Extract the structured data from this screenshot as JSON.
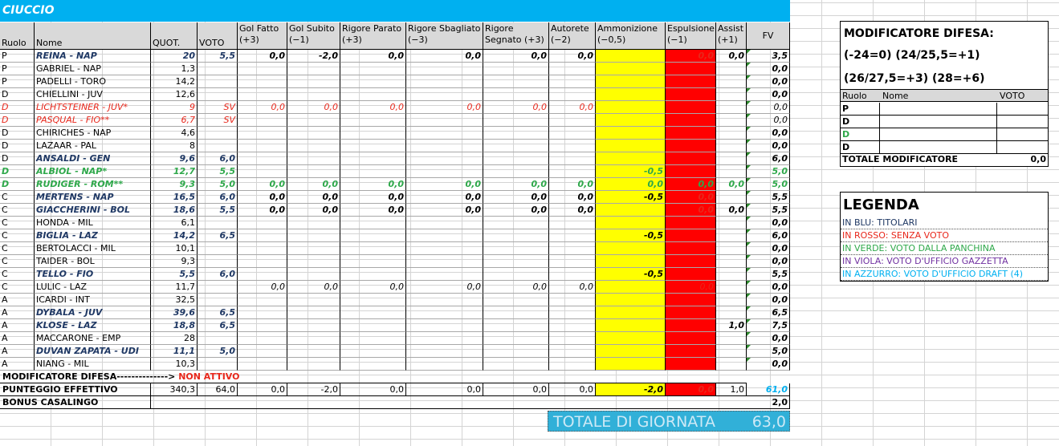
{
  "team_name": "CIUCCIO",
  "columns": [
    "Ruolo",
    "Nome",
    "QUOT.",
    "VOTO",
    "Gol Fatto (+3)",
    "Gol Subito (−1)",
    "Rigore Parato (+3)",
    "Rigore Sbagliato (−3)",
    "Rigore Segnato (+3)",
    "Autorete (−2)",
    "Ammonizione (−0,5)",
    "Espulsione (−1)",
    "Assist (+1)",
    "FV"
  ],
  "players": [
    {
      "ruolo": "P",
      "nome": "REINA - NAP",
      "quot": "20",
      "voto": "5,5",
      "gf": "0,0",
      "gs": "-2,0",
      "rp": "0,0",
      "rsb": "0,0",
      "rse": "0,0",
      "aut": "0,0",
      "amm": "",
      "esp": "0,0",
      "ass": "0,0",
      "fv": "3,5",
      "style": "blue"
    },
    {
      "ruolo": "P",
      "nome": "GABRIEL - NAP",
      "quot": "1,3",
      "voto": "",
      "gf": "",
      "gs": "",
      "rp": "",
      "rsb": "",
      "rse": "",
      "aut": "",
      "amm": "",
      "esp": "",
      "ass": "",
      "fv": "0,0",
      "style": "plain"
    },
    {
      "ruolo": "P",
      "nome": "PADELLI - TORO",
      "quot": "14,2",
      "voto": "",
      "gf": "",
      "gs": "",
      "rp": "",
      "rsb": "",
      "rse": "",
      "aut": "",
      "amm": "",
      "esp": "",
      "ass": "",
      "fv": "0,0",
      "style": "plain"
    },
    {
      "ruolo": "D",
      "nome": "CHIELLINI - JUV",
      "quot": "12,6",
      "voto": "",
      "gf": "",
      "gs": "",
      "rp": "",
      "rsb": "",
      "rse": "",
      "aut": "",
      "amm": "",
      "esp": "",
      "ass": "",
      "fv": "0,0",
      "style": "plain"
    },
    {
      "ruolo": "D",
      "nome": "LICHTSTEINER - JUV*",
      "quot": "9",
      "voto": "SV",
      "gf": "0,0",
      "gs": "0,0",
      "rp": "0,0",
      "rsb": "0,0",
      "rse": "0,0",
      "aut": "0,0",
      "amm": "",
      "esp": "",
      "ass": "",
      "fv": "0,0",
      "style": "red"
    },
    {
      "ruolo": "D",
      "nome": "PASQUAL - FIO**",
      "quot": "6,7",
      "voto": "SV",
      "gf": "",
      "gs": "",
      "rp": "",
      "rsb": "",
      "rse": "",
      "aut": "",
      "amm": "",
      "esp": "",
      "ass": "",
      "fv": "0,0",
      "style": "red"
    },
    {
      "ruolo": "D",
      "nome": "CHIRICHES - NAP",
      "quot": "4,6",
      "voto": "",
      "gf": "",
      "gs": "",
      "rp": "",
      "rsb": "",
      "rse": "",
      "aut": "",
      "amm": "",
      "esp": "",
      "ass": "",
      "fv": "0,0",
      "style": "plain"
    },
    {
      "ruolo": "D",
      "nome": "LAZAAR - PAL",
      "quot": "8",
      "voto": "",
      "gf": "",
      "gs": "",
      "rp": "",
      "rsb": "",
      "rse": "",
      "aut": "",
      "amm": "",
      "esp": "",
      "ass": "",
      "fv": "0,0",
      "style": "plain"
    },
    {
      "ruolo": "D",
      "nome": "ANSALDI - GEN",
      "quot": "9,6",
      "voto": "6,0",
      "gf": "",
      "gs": "",
      "rp": "",
      "rsb": "",
      "rse": "",
      "aut": "",
      "amm": "",
      "esp": "",
      "ass": "",
      "fv": "6,0",
      "style": "blue"
    },
    {
      "ruolo": "D",
      "nome": "ALBIOL - NAP*",
      "quot": "12,7",
      "voto": "5,5",
      "gf": "",
      "gs": "",
      "rp": "",
      "rsb": "",
      "rse": "",
      "aut": "",
      "amm": "-0,5",
      "esp": "",
      "ass": "",
      "fv": "5,0",
      "style": "green"
    },
    {
      "ruolo": "D",
      "nome": "RUDIGER - ROM**",
      "quot": "9,3",
      "voto": "5,0",
      "gf": "0,0",
      "gs": "0,0",
      "rp": "0,0",
      "rsb": "0,0",
      "rse": "0,0",
      "aut": "0,0",
      "amm": "0,0",
      "esp": "0,0",
      "ass": "0,0",
      "fv": "5,0",
      "style": "green"
    },
    {
      "ruolo": "C",
      "nome": "MERTENS - NAP",
      "quot": "16,5",
      "voto": "6,0",
      "gf": "0,0",
      "gs": "0,0",
      "rp": "0,0",
      "rsb": "0,0",
      "rse": "0,0",
      "aut": "0,0",
      "amm": "-0,5",
      "esp": "0,0",
      "ass": "",
      "fv": "5,5",
      "style": "blue"
    },
    {
      "ruolo": "C",
      "nome": "GIACCHERINI - BOL",
      "quot": "18,6",
      "voto": "5,5",
      "gf": "0,0",
      "gs": "0,0",
      "rp": "0,0",
      "rsb": "0,0",
      "rse": "0,0",
      "aut": "0,0",
      "amm": "",
      "esp": "0,0",
      "ass": "0,0",
      "fv": "5,5",
      "style": "blue"
    },
    {
      "ruolo": "C",
      "nome": "HONDA - MIL",
      "quot": "6,1",
      "voto": "",
      "gf": "",
      "gs": "",
      "rp": "",
      "rsb": "",
      "rse": "",
      "aut": "",
      "amm": "",
      "esp": "",
      "ass": "",
      "fv": "0,0",
      "style": "plain"
    },
    {
      "ruolo": "C",
      "nome": "BIGLIA - LAZ",
      "quot": "14,2",
      "voto": "6,5",
      "gf": "",
      "gs": "",
      "rp": "",
      "rsb": "",
      "rse": "",
      "aut": "",
      "amm": "-0,5",
      "esp": "",
      "ass": "",
      "fv": "6,0",
      "style": "blue"
    },
    {
      "ruolo": "C",
      "nome": "BERTOLACCI - MIL",
      "quot": "10,1",
      "voto": "",
      "gf": "",
      "gs": "",
      "rp": "",
      "rsb": "",
      "rse": "",
      "aut": "",
      "amm": "",
      "esp": "",
      "ass": "",
      "fv": "0,0",
      "style": "plain"
    },
    {
      "ruolo": "C",
      "nome": "TAIDER - BOL",
      "quot": "9,3",
      "voto": "",
      "gf": "",
      "gs": "",
      "rp": "",
      "rsb": "",
      "rse": "",
      "aut": "",
      "amm": "",
      "esp": "",
      "ass": "",
      "fv": "0,0",
      "style": "plain"
    },
    {
      "ruolo": "C",
      "nome": "TELLO - FIO",
      "quot": "5,5",
      "voto": "6,0",
      "gf": "",
      "gs": "",
      "rp": "",
      "rsb": "",
      "rse": "",
      "aut": "",
      "amm": "-0,5",
      "esp": "",
      "ass": "",
      "fv": "5,5",
      "style": "blue"
    },
    {
      "ruolo": "C",
      "nome": "LULIC - LAZ",
      "quot": "11,7",
      "voto": "",
      "gf": "0,0",
      "gs": "0,0",
      "rp": "0,0",
      "rsb": "0,0",
      "rse": "0,0",
      "aut": "0,0",
      "amm": "",
      "esp": "0,0",
      "ass": "",
      "fv": "0,0",
      "style": "plain"
    },
    {
      "ruolo": "A",
      "nome": "ICARDI - INT",
      "quot": "32,5",
      "voto": "",
      "gf": "",
      "gs": "",
      "rp": "",
      "rsb": "",
      "rse": "",
      "aut": "",
      "amm": "",
      "esp": "",
      "ass": "",
      "fv": "0,0",
      "style": "plain"
    },
    {
      "ruolo": "A",
      "nome": "DYBALA - JUV",
      "quot": "39,6",
      "voto": "6,5",
      "gf": "",
      "gs": "",
      "rp": "",
      "rsb": "",
      "rse": "",
      "aut": "",
      "amm": "",
      "esp": "",
      "ass": "",
      "fv": "6,5",
      "style": "blue"
    },
    {
      "ruolo": "A",
      "nome": "KLOSE - LAZ",
      "quot": "18,8",
      "voto": "6,5",
      "gf": "",
      "gs": "",
      "rp": "",
      "rsb": "",
      "rse": "",
      "aut": "",
      "amm": "",
      "esp": "",
      "ass": "1,0",
      "fv": "7,5",
      "style": "blue"
    },
    {
      "ruolo": "A",
      "nome": "MACCARONE - EMP",
      "quot": "28",
      "voto": "",
      "gf": "",
      "gs": "",
      "rp": "",
      "rsb": "",
      "rse": "",
      "aut": "",
      "amm": "",
      "esp": "",
      "ass": "",
      "fv": "0,0",
      "style": "plain"
    },
    {
      "ruolo": "A",
      "nome": "DUVAN ZAPATA - UDI",
      "quot": "11,1",
      "voto": "5,0",
      "gf": "",
      "gs": "",
      "rp": "",
      "rsb": "",
      "rse": "",
      "aut": "",
      "amm": "",
      "esp": "",
      "ass": "",
      "fv": "5,0",
      "style": "blue"
    },
    {
      "ruolo": "A",
      "nome": "NIANG - MIL",
      "quot": "10,3",
      "voto": "",
      "gf": "",
      "gs": "",
      "rp": "",
      "rsb": "",
      "rse": "",
      "aut": "",
      "amm": "",
      "esp": "",
      "ass": "",
      "fv": "0,0",
      "style": "plain"
    }
  ],
  "modificatore_row": {
    "label": "MODIFICATORE DIFESA-------------->",
    "status": "NON ATTIVO"
  },
  "punteggio_row": {
    "label": "PUNTEGGIO EFFETTIVO",
    "quot": "340,3",
    "voto": "64,0",
    "gf": "0,0",
    "gs": "-2,0",
    "rp": "0,0",
    "rsb": "0,0",
    "rse": "0,0",
    "aut": "0,0",
    "amm": "-2,0",
    "esp": "0,0",
    "ass": "1,0",
    "fv": "61,0"
  },
  "bonus_row": {
    "label": "BONUS CASALINGO",
    "fv": "2,0"
  },
  "totale": {
    "label": "TOTALE DI GIORNATA",
    "value": "63,0"
  },
  "mod_panel": {
    "title": "MODIFICATORE DIFESA:",
    "line1": "(-24=0) (24/25,5=+1)",
    "line2": "(26/27,5=+3) (28=+6)",
    "headers": [
      "Ruolo",
      "Nome",
      "VOTO"
    ],
    "rows": [
      "P",
      "D",
      "D",
      "D"
    ],
    "total_label": "TOTALE MODIFICATORE",
    "total_value": "0,0"
  },
  "legenda": {
    "title": "LEGENDA",
    "items": [
      {
        "text": "IN BLU: TITOLARI",
        "color": "#1f3864"
      },
      {
        "text": "IN ROSSO: SENZA VOTO",
        "color": "#e8271b"
      },
      {
        "text": "IN VERDE: VOTO DALLA PANCHINA",
        "color": "#2ea84a"
      },
      {
        "text": "IN VIOLA: VOTO D'UFFICIO GAZZETTA",
        "color": "#7030a0"
      },
      {
        "text": "IN AZZURRO: VOTO D'UFFICIO DRAFT (4)",
        "color": "#00b0f0"
      }
    ]
  }
}
